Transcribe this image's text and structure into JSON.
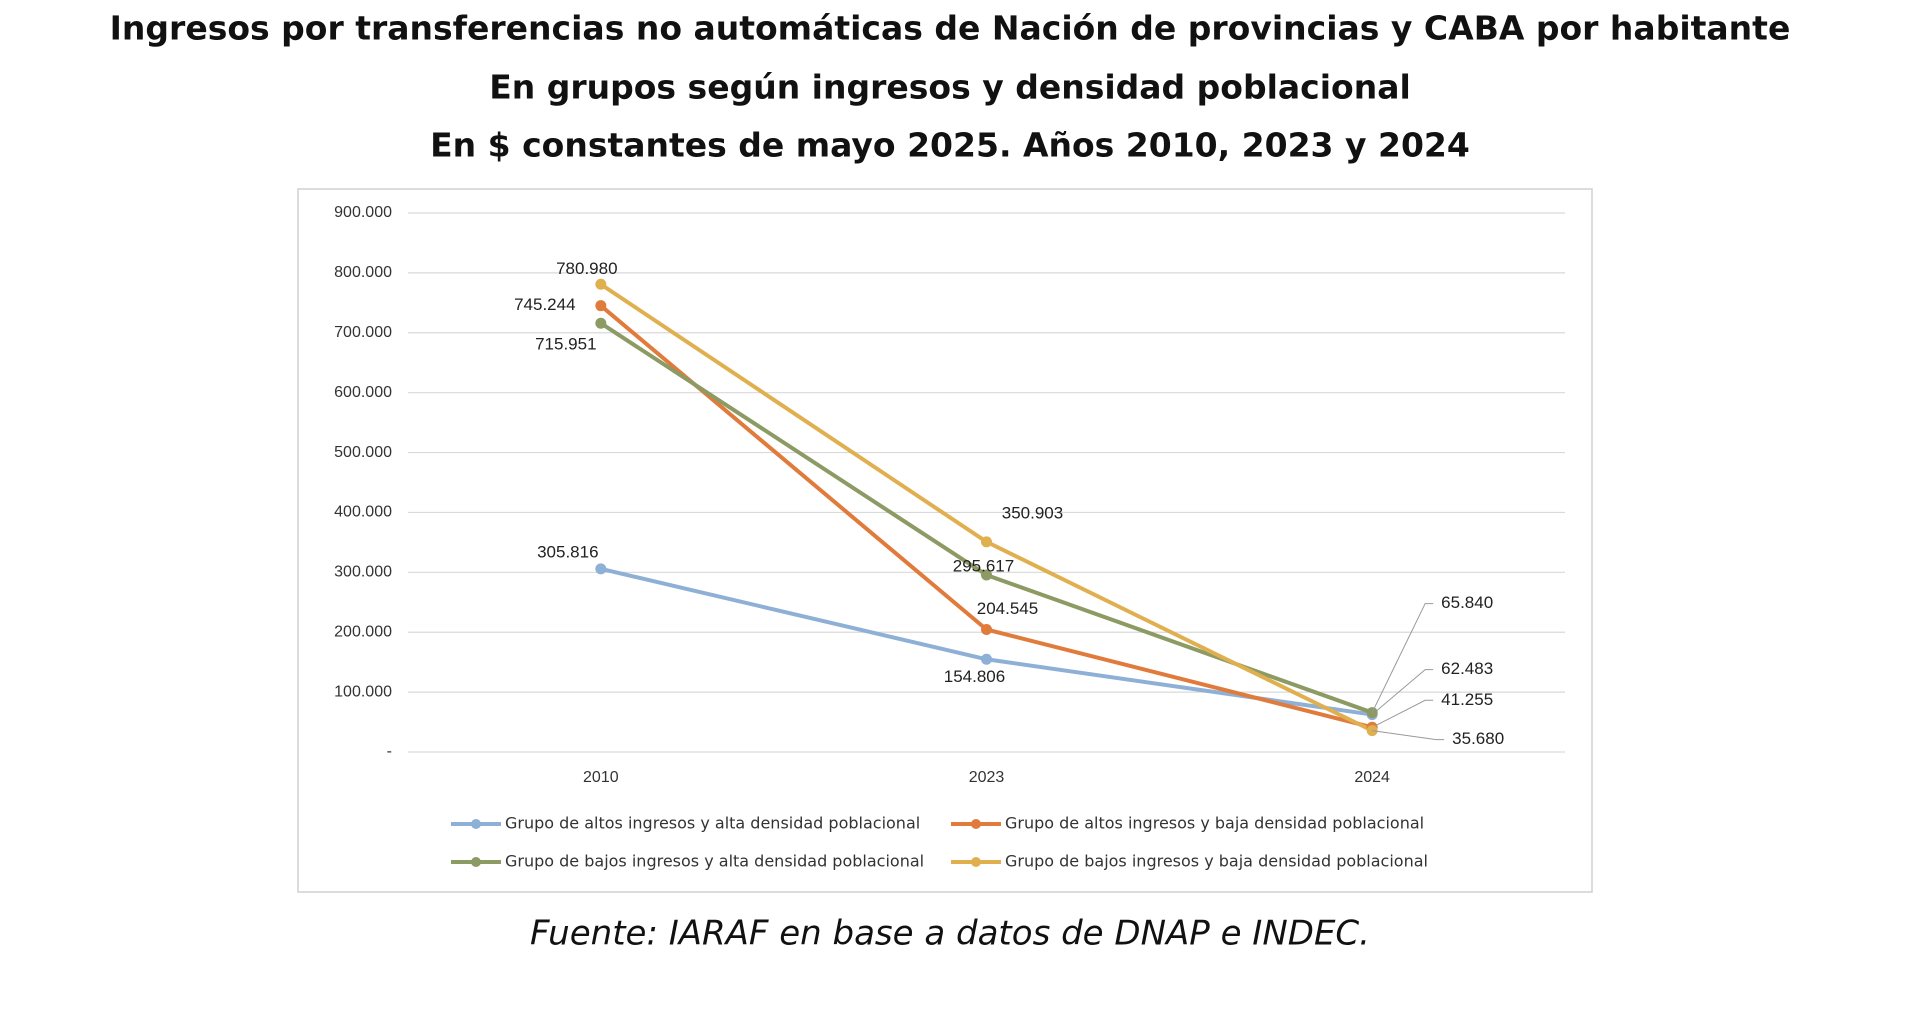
{
  "chart_data": {
    "type": "line",
    "title": "Ingresos por transferencias no automáticas de Nación de provincias y CABA por habitante",
    "subtitle": "En grupos según ingresos y densidad poblacional",
    "subtitle2": "En $ constantes de mayo 2025.  Años 2010, 2023 y 2024",
    "source": "Fuente:  IARAF en base a datos de DNAP e INDEC.",
    "categories": [
      "2010",
      "2023",
      "2024"
    ],
    "ylim": [
      0,
      900000
    ],
    "yticks": [
      {
        "value": 0,
        "label": "-"
      },
      {
        "value": 100000,
        "label": "100.000"
      },
      {
        "value": 200000,
        "label": "200.000"
      },
      {
        "value": 300000,
        "label": "300.000"
      },
      {
        "value": 400000,
        "label": "400.000"
      },
      {
        "value": 500000,
        "label": "500.000"
      },
      {
        "value": 600000,
        "label": "600.000"
      },
      {
        "value": 700000,
        "label": "700.000"
      },
      {
        "value": 800000,
        "label": "800.000"
      },
      {
        "value": 900000,
        "label": "900.000"
      }
    ],
    "grid": true,
    "legend": "bottom",
    "series": [
      {
        "name": "Grupo de altos ingresos y alta densidad poblacional",
        "color": "#8eb0d6",
        "values": [
          305816,
          154806,
          62483
        ],
        "value_labels": [
          "305.816",
          "154.806",
          "62.483"
        ]
      },
      {
        "name": "Grupo de altos ingresos y baja densidad poblacional",
        "color": "#e07b3c",
        "values": [
          745244,
          204545,
          41255
        ],
        "value_labels": [
          "745.244",
          "204.545",
          "41.255"
        ]
      },
      {
        "name": "Grupo de bajos ingresos y alta densidad poblacional",
        "color": "#8c9a64",
        "values": [
          715951,
          295617,
          65840
        ],
        "value_labels": [
          "715.951",
          "295.617",
          "65.840"
        ]
      },
      {
        "name": "Grupo de bajos ingresos y baja densidad poblacional",
        "color": "#e0b050",
        "values": [
          780980,
          350903,
          35680
        ],
        "value_labels": [
          "780.980",
          "350.903",
          "35.680"
        ]
      }
    ]
  }
}
